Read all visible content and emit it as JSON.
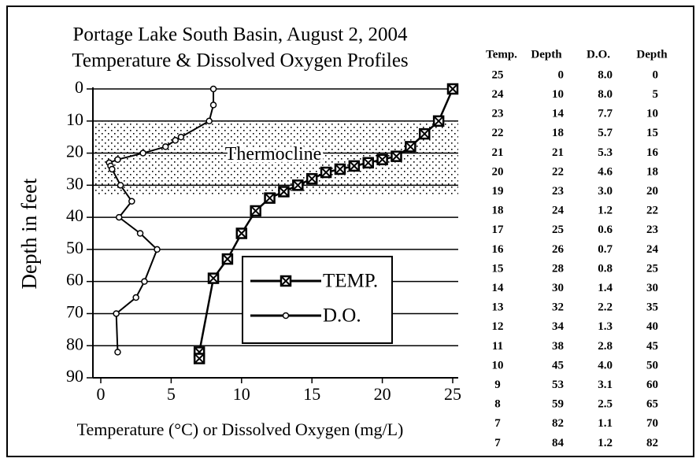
{
  "chart_data": {
    "type": "line",
    "title": [
      "Portage Lake South Basin, August 2, 2004",
      "Temperature & Dissolved Oxygen Profiles"
    ],
    "x_label": "Temperature (°C) or Dissolved Oxygen (mg/L)",
    "y_label": "Depth in feet",
    "xlim": [
      0,
      25
    ],
    "xticks": [
      0,
      5,
      10,
      15,
      20,
      25
    ],
    "ylim": [
      0,
      90
    ],
    "yticks": [
      0,
      10,
      20,
      30,
      40,
      50,
      60,
      70,
      80,
      90
    ],
    "y_inverted": true,
    "grid": true,
    "annotation": {
      "text": "Thermocline",
      "y_range": [
        10,
        33
      ]
    },
    "series": [
      {
        "name": "TEMP.",
        "color": "#000000",
        "marker": "boxed-x",
        "x": [
          25,
          24,
          23,
          22,
          21,
          20,
          19,
          18,
          17,
          16,
          15,
          14,
          13,
          12,
          11,
          10,
          9,
          8,
          7,
          7
        ],
        "values": [
          0,
          10,
          14,
          18,
          21,
          22,
          23,
          24,
          25,
          26,
          28,
          30,
          32,
          34,
          38,
          45,
          53,
          59,
          82,
          84
        ]
      },
      {
        "name": "D.O.",
        "color": "#000000",
        "marker": "circle",
        "x": [
          8.0,
          8.0,
          7.7,
          5.7,
          5.3,
          4.6,
          3.0,
          1.2,
          0.6,
          0.7,
          0.8,
          1.4,
          2.2,
          1.3,
          2.8,
          4.0,
          3.1,
          2.5,
          1.1,
          1.2
        ],
        "values": [
          0,
          5,
          10,
          15,
          16,
          18,
          20,
          22,
          23,
          24,
          25,
          30,
          35,
          40,
          45,
          50,
          60,
          65,
          70,
          82
        ]
      }
    ]
  },
  "table": {
    "columns": [
      "Temp.",
      "Depth",
      "D.O.",
      "Depth"
    ],
    "rows": [
      [
        "25",
        "0",
        "8.0",
        "0"
      ],
      [
        "24",
        "10",
        "8.0",
        "5"
      ],
      [
        "23",
        "14",
        "7.7",
        "10"
      ],
      [
        "22",
        "18",
        "5.7",
        "15"
      ],
      [
        "21",
        "21",
        "5.3",
        "16"
      ],
      [
        "20",
        "22",
        "4.6",
        "18"
      ],
      [
        "19",
        "23",
        "3.0",
        "20"
      ],
      [
        "18",
        "24",
        "1.2",
        "22"
      ],
      [
        "17",
        "25",
        "0.6",
        "23"
      ],
      [
        "16",
        "26",
        "0.7",
        "24"
      ],
      [
        "15",
        "28",
        "0.8",
        "25"
      ],
      [
        "14",
        "30",
        "1.4",
        "30"
      ],
      [
        "13",
        "32",
        "2.2",
        "35"
      ],
      [
        "12",
        "34",
        "1.3",
        "40"
      ],
      [
        "11",
        "38",
        "2.8",
        "45"
      ],
      [
        "10",
        "45",
        "4.0",
        "50"
      ],
      [
        "9",
        "53",
        "3.1",
        "60"
      ],
      [
        "8",
        "59",
        "2.5",
        "65"
      ],
      [
        "7",
        "82",
        "1.1",
        "70"
      ],
      [
        "7",
        "84",
        "1.2",
        "82"
      ]
    ]
  }
}
